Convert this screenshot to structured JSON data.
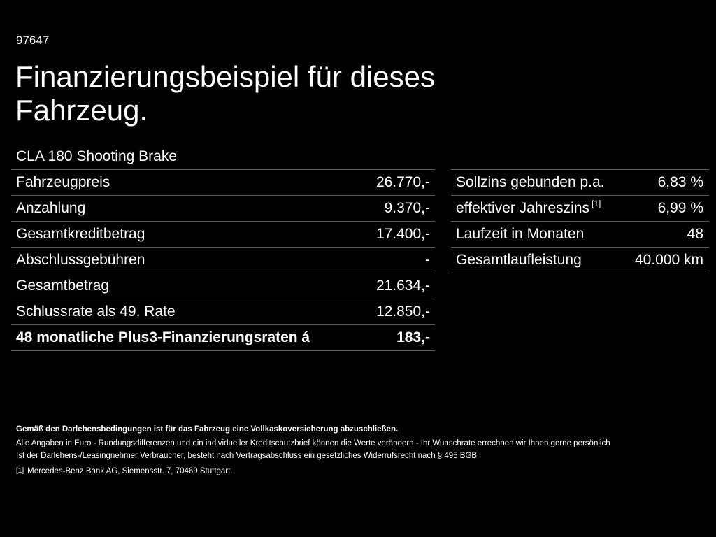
{
  "header": {
    "code": "97647",
    "title": "Finanzierungsbeispiel für dieses Fahrzeug.",
    "model": "CLA 180 Shooting Brake"
  },
  "left_table": [
    {
      "label": "Fahrzeugpreis",
      "value": "26.770,-"
    },
    {
      "label": "Anzahlung",
      "value": "9.370,-"
    },
    {
      "label": "Gesamtkreditbetrag",
      "value": "17.400,-"
    },
    {
      "label": "Abschlussgebühren",
      "value": "-"
    },
    {
      "label": "Gesamtbetrag",
      "value": "21.634,-"
    },
    {
      "label": "Schlussrate als 49. Rate",
      "value": "12.850,-"
    },
    {
      "label": "48 monatliche Plus3-Finanzierungsraten á",
      "value": "183,-"
    }
  ],
  "right_table": [
    {
      "label": "Sollzins gebunden p.a.",
      "value": "6,83 %"
    },
    {
      "label": "effektiver Jahreszins",
      "sup": "[1]",
      "value": "6,99 %"
    },
    {
      "label": "Laufzeit in Monaten",
      "value": "48"
    },
    {
      "label": "Gesamtlaufleistung",
      "value": "40.000 km"
    }
  ],
  "footnotes": {
    "bold_line": "Gemäß den Darlehensbedingungen ist für das Fahrzeug eine Vollkaskoversicherung abzuschließen.",
    "line1": "Alle Angaben in Euro - Rundungsdifferenzen und ein individueller Kreditschutzbrief können die Werte verändern - Ihr Wunschrate errechnen wir Ihnen gerne persönlich",
    "line2": "Ist der Darlehens-/Leasingnehmer Verbraucher, besteht nach Vertragsabschluss ein gesetzliches Widerrufsrecht nach § 495 BGB",
    "ref_mark": "[1]",
    "ref_text": "Mercedes-Benz Bank AG, Siemensstr. 7, 70469 Stuttgart."
  }
}
